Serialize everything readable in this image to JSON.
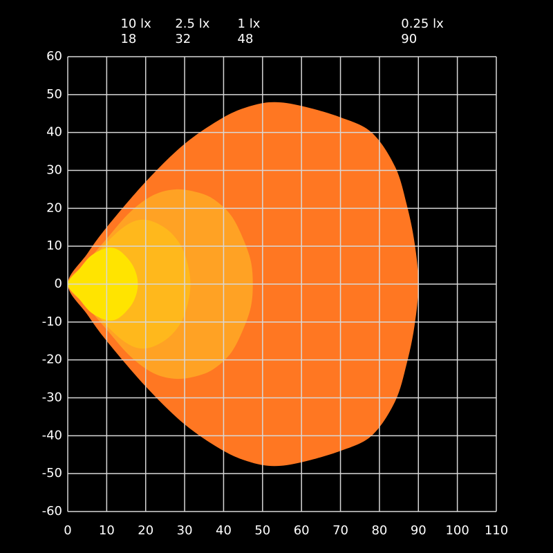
{
  "chart_data": {
    "type": "isolux",
    "xlim": [
      0,
      110
    ],
    "xticks": [
      0,
      10,
      20,
      30,
      40,
      50,
      60,
      70,
      80,
      90,
      100,
      110
    ],
    "ylim": [
      -60,
      60
    ],
    "yticks": [
      -60,
      -50,
      -40,
      -30,
      -20,
      -10,
      0,
      10,
      20,
      30,
      40,
      50,
      60
    ],
    "grid": true,
    "series": [
      {
        "name": "0.25 lx",
        "distance": 90,
        "color": "#ff7722",
        "x": [
          0,
          5,
          10,
          20,
          30,
          40,
          47,
          53,
          60,
          70,
          78,
          84,
          87,
          89,
          90,
          89,
          87,
          84,
          78,
          70,
          60,
          53,
          47,
          40,
          30,
          20,
          10,
          5
        ],
        "y": [
          0,
          8,
          15,
          27,
          37,
          44,
          47,
          48,
          47,
          44,
          40,
          31,
          21,
          11,
          0,
          -11,
          -21,
          -31,
          -40,
          -44,
          -47,
          -48,
          -47,
          -44,
          -37,
          -27,
          -15,
          -8
        ]
      },
      {
        "name": "1 lx",
        "distance": 48,
        "color": "#ffa224",
        "x": [
          0,
          5,
          10,
          16,
          22,
          28,
          34,
          38,
          42,
          45,
          47,
          47.5,
          47,
          45,
          42,
          38,
          34,
          28,
          22,
          16,
          10,
          5
        ],
        "y": [
          0,
          6,
          12,
          19,
          23.5,
          25,
          24,
          22,
          18,
          12,
          6,
          0,
          -6,
          -12,
          -18,
          -22,
          -24,
          -25,
          -23.5,
          -19,
          -12,
          -6
        ]
      },
      {
        "name": "2.5 lx",
        "distance": 32,
        "color": "#ffb81c",
        "x": [
          0,
          5,
          10,
          15,
          19,
          23,
          27,
          30,
          31.5,
          30,
          27,
          23,
          19,
          15,
          10,
          5
        ],
        "y": [
          0,
          5,
          11,
          15.5,
          17,
          16,
          13,
          8,
          0,
          -8,
          -13,
          -16,
          -17,
          -15.5,
          -11,
          -5
        ]
      },
      {
        "name": "10 lx",
        "distance": 18,
        "color": "#ffe400",
        "x": [
          0,
          3,
          6,
          10,
          13,
          16,
          17.5,
          18,
          17.5,
          16,
          13,
          10,
          6,
          3
        ],
        "y": [
          0,
          4,
          7.5,
          9.5,
          9,
          6,
          3,
          0,
          -3,
          -6,
          -9,
          -9.5,
          -7.5,
          -4
        ]
      }
    ]
  }
}
